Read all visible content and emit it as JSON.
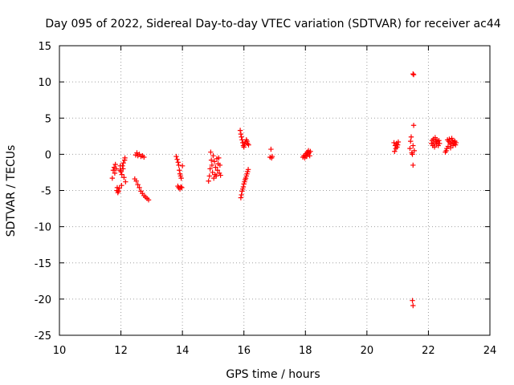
{
  "chart_data": {
    "type": "scatter",
    "title": "Day 095 of 2022, Sidereal Day-to-day VTEC variation (SDTVAR) for receiver ac44",
    "xlabel": "GPS time / hours",
    "ylabel": "SDTVAR / TECUs",
    "xlim": [
      10,
      24
    ],
    "ylim": [
      -25,
      15
    ],
    "xticks": [
      10,
      12,
      14,
      16,
      18,
      20,
      22,
      24
    ],
    "yticks": [
      -25,
      -20,
      -15,
      -10,
      -5,
      0,
      5,
      10,
      15
    ],
    "grid": true,
    "marker": "plus",
    "color": "#ff0000",
    "series": [
      {
        "name": "SDTVAR",
        "points": [
          [
            11.72,
            -3.3
          ],
          [
            11.75,
            -2.2
          ],
          [
            11.78,
            -1.8
          ],
          [
            11.8,
            -2.6
          ],
          [
            11.82,
            -1.4
          ],
          [
            11.85,
            -2.0
          ],
          [
            11.87,
            -5.0
          ],
          [
            11.88,
            -4.6
          ],
          [
            11.9,
            -5.3
          ],
          [
            11.92,
            -5.1
          ],
          [
            11.95,
            -4.7
          ],
          [
            11.97,
            -2.2
          ],
          [
            11.98,
            -1.6
          ],
          [
            12.0,
            -2.4
          ],
          [
            12.02,
            -4.3
          ],
          [
            12.03,
            -2.8
          ],
          [
            12.05,
            -1.6
          ],
          [
            12.07,
            -2.0
          ],
          [
            12.08,
            -1.2
          ],
          [
            12.1,
            -3.2
          ],
          [
            12.12,
            -0.8
          ],
          [
            12.13,
            -0.5
          ],
          [
            12.15,
            -3.8
          ],
          [
            12.48,
            -0.1
          ],
          [
            12.52,
            0.2
          ],
          [
            12.55,
            -0.2
          ],
          [
            12.6,
            0.0
          ],
          [
            12.65,
            -0.3
          ],
          [
            12.7,
            -0.2
          ],
          [
            12.75,
            -0.4
          ],
          [
            12.45,
            -3.4
          ],
          [
            12.5,
            -3.7
          ],
          [
            12.55,
            -4.2
          ],
          [
            12.6,
            -4.6
          ],
          [
            12.65,
            -5.1
          ],
          [
            12.7,
            -5.4
          ],
          [
            12.75,
            -5.7
          ],
          [
            12.8,
            -5.9
          ],
          [
            12.85,
            -6.1
          ],
          [
            12.9,
            -6.3
          ],
          [
            13.8,
            -0.3
          ],
          [
            13.83,
            -0.7
          ],
          [
            13.86,
            -1.1
          ],
          [
            13.88,
            -1.5
          ],
          [
            13.9,
            -2.2
          ],
          [
            13.92,
            -2.7
          ],
          [
            13.94,
            -3.0
          ],
          [
            13.96,
            -3.3
          ],
          [
            13.85,
            -4.4
          ],
          [
            13.88,
            -4.6
          ],
          [
            13.92,
            -4.8
          ],
          [
            13.95,
            -4.5
          ],
          [
            14.0,
            -1.6
          ],
          [
            13.98,
            -4.6
          ],
          [
            14.85,
            -3.7
          ],
          [
            14.88,
            -3.0
          ],
          [
            14.9,
            -2.0
          ],
          [
            14.92,
            0.3
          ],
          [
            14.94,
            -0.8
          ],
          [
            14.96,
            -1.5
          ],
          [
            14.98,
            -2.5
          ],
          [
            15.0,
            -0.2
          ],
          [
            15.02,
            -3.3
          ],
          [
            15.04,
            -1.0
          ],
          [
            15.06,
            -2.8
          ],
          [
            15.08,
            -1.8
          ],
          [
            15.1,
            -3.0
          ],
          [
            15.12,
            -0.6
          ],
          [
            15.14,
            -2.2
          ],
          [
            15.16,
            -1.3
          ],
          [
            15.18,
            -0.5
          ],
          [
            15.2,
            -2.6
          ],
          [
            15.22,
            -1.5
          ],
          [
            15.24,
            -2.9
          ],
          [
            15.9,
            -6.0
          ],
          [
            15.92,
            -5.6
          ],
          [
            15.94,
            -5.1
          ],
          [
            15.96,
            -4.8
          ],
          [
            15.98,
            -4.5
          ],
          [
            16.0,
            -4.1
          ],
          [
            16.02,
            -3.8
          ],
          [
            16.04,
            -3.5
          ],
          [
            16.06,
            -3.3
          ],
          [
            16.08,
            -3.0
          ],
          [
            16.1,
            -2.7
          ],
          [
            16.12,
            -2.4
          ],
          [
            16.14,
            -2.1
          ],
          [
            15.88,
            3.3
          ],
          [
            15.9,
            2.8
          ],
          [
            15.92,
            2.4
          ],
          [
            15.94,
            2.0
          ],
          [
            15.96,
            1.6
          ],
          [
            15.98,
            1.2
          ],
          [
            16.0,
            1.0
          ],
          [
            16.02,
            1.4
          ],
          [
            16.05,
            1.7
          ],
          [
            16.08,
            2.0
          ],
          [
            16.1,
            1.8
          ],
          [
            16.12,
            1.5
          ],
          [
            16.15,
            1.3
          ],
          [
            16.88,
            0.7
          ],
          [
            16.85,
            -0.4
          ],
          [
            16.9,
            -0.5
          ],
          [
            16.92,
            -0.3
          ],
          [
            17.92,
            -0.4
          ],
          [
            17.95,
            -0.2
          ],
          [
            17.98,
            -0.5
          ],
          [
            18.0,
            -0.1
          ],
          [
            18.02,
            0.1
          ],
          [
            18.04,
            -0.3
          ],
          [
            18.06,
            0.3
          ],
          [
            18.08,
            0.0
          ],
          [
            18.1,
            0.5
          ],
          [
            18.12,
            0.2
          ],
          [
            18.14,
            -0.2
          ],
          [
            18.16,
            0.4
          ],
          [
            20.88,
            1.6
          ],
          [
            20.9,
            0.4
          ],
          [
            20.92,
            1.2
          ],
          [
            20.94,
            0.8
          ],
          [
            20.96,
            1.5
          ],
          [
            20.98,
            1.0
          ],
          [
            21.0,
            1.3
          ],
          [
            21.02,
            1.7
          ],
          [
            21.4,
            0.8
          ],
          [
            21.42,
            1.8
          ],
          [
            21.44,
            2.4
          ],
          [
            21.46,
            0.2
          ],
          [
            21.48,
            0.0
          ],
          [
            21.5,
            1.2
          ],
          [
            21.5,
            -1.5
          ],
          [
            21.52,
            4.0
          ],
          [
            21.54,
            0.5
          ],
          [
            21.5,
            11.1
          ],
          [
            21.52,
            11.0
          ],
          [
            21.48,
            -20.2
          ],
          [
            21.5,
            -20.9
          ],
          [
            22.1,
            1.5
          ],
          [
            22.12,
            1.9
          ],
          [
            22.14,
            1.2
          ],
          [
            22.16,
            2.1
          ],
          [
            22.18,
            1.6
          ],
          [
            22.2,
            1.0
          ],
          [
            22.22,
            2.3
          ],
          [
            22.24,
            1.8
          ],
          [
            22.26,
            1.4
          ],
          [
            22.28,
            2.0
          ],
          [
            22.3,
            1.7
          ],
          [
            22.32,
            1.2
          ],
          [
            22.34,
            1.9
          ],
          [
            22.36,
            1.5
          ],
          [
            22.55,
            0.3
          ],
          [
            22.58,
            0.5
          ],
          [
            22.6,
            0.8
          ],
          [
            22.62,
            2.0
          ],
          [
            22.64,
            1.1
          ],
          [
            22.66,
            1.8
          ],
          [
            22.68,
            2.1
          ],
          [
            22.7,
            1.6
          ],
          [
            22.72,
            0.9
          ],
          [
            22.74,
            1.4
          ],
          [
            22.76,
            2.2
          ],
          [
            22.78,
            1.9
          ],
          [
            22.8,
            1.2
          ],
          [
            22.82,
            1.7
          ],
          [
            22.84,
            1.5
          ],
          [
            22.86,
            1.8
          ],
          [
            22.88,
            1.3
          ],
          [
            22.9,
            1.6
          ]
        ]
      }
    ]
  }
}
